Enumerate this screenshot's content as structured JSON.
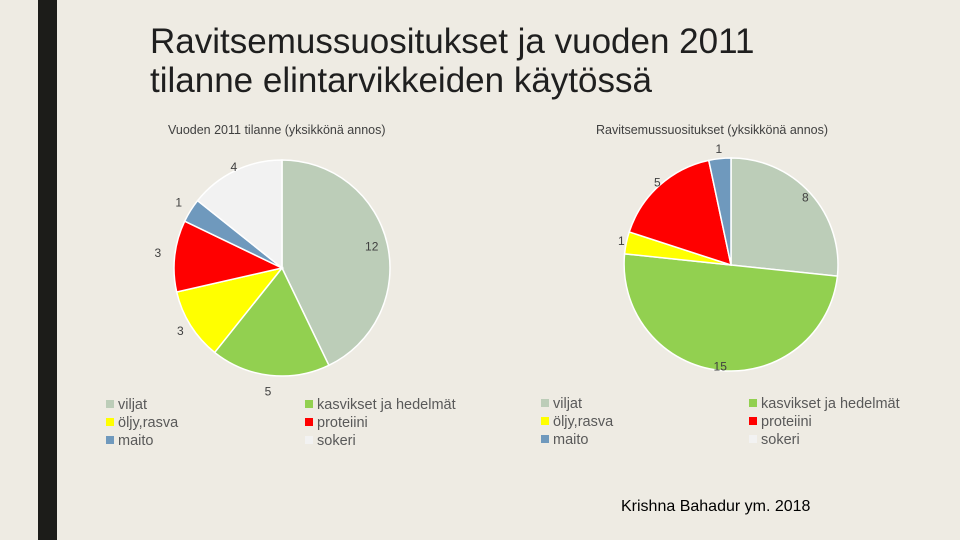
{
  "slide": {
    "title_line1": "Ravitsemussuositukset ja vuoden 2011",
    "title_line2": "tilanne elintarvikkeiden käytössä",
    "source": "Krishna Bahadur ym. 2018"
  },
  "colors": {
    "viljat": "#bccdb8",
    "kasvikset": "#92d050",
    "oljy": "#ffff00",
    "proteiini": "#ff0000",
    "maito": "#6f99bd",
    "sokeri": "#f2f2f2"
  },
  "chart_data": [
    {
      "type": "pie",
      "title": "Vuoden 2011 tilanne (yksikkönä annos)",
      "categories": [
        "viljat",
        "kasvikset ja hedelmät",
        "öljy,rasva",
        "proteiini",
        "maito",
        "sokeri"
      ],
      "values": [
        12,
        5,
        3,
        3,
        1,
        4
      ],
      "legend": "bottom",
      "legend_entries": [
        "viljat",
        "kasvikset ja hedelmät",
        "öljy,rasva",
        "proteiini",
        "maito",
        "sokeri"
      ]
    },
    {
      "type": "pie",
      "title": "Ravitsemussuositukset (yksikkönä annos)",
      "categories": [
        "viljat",
        "kasvikset ja hedelmät",
        "öljy,rasva",
        "proteiini",
        "maito",
        "sokeri"
      ],
      "values": [
        8,
        15,
        1,
        5,
        1,
        0
      ],
      "legend": "bottom",
      "legend_entries": [
        "viljat",
        "kasvikset ja hedelmät",
        "öljy,rasva",
        "proteiini",
        "maito",
        "sokeri"
      ]
    }
  ]
}
